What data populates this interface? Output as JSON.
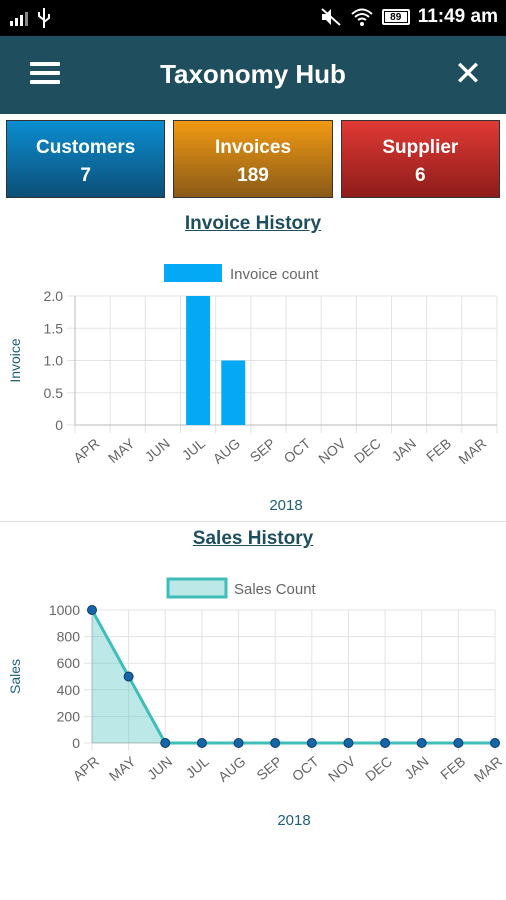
{
  "status": {
    "time": "11:49 am",
    "battery": "89"
  },
  "app_bar": {
    "title": "Taxonomy Hub"
  },
  "cards": [
    {
      "label": "Customers",
      "count": "7"
    },
    {
      "label": "Invoices",
      "count": "189"
    },
    {
      "label": "Supplier",
      "count": "6"
    }
  ],
  "invoice_section": {
    "title": "Invoice History"
  },
  "sales_section": {
    "title": "Sales History"
  },
  "chart_data": [
    {
      "type": "bar",
      "categories": [
        "APR",
        "MAY",
        "JUN",
        "JUL",
        "AUG",
        "SEP",
        "OCT",
        "NOV",
        "DEC",
        "JAN",
        "FEB",
        "MAR"
      ],
      "series": [
        {
          "name": "Invoice count",
          "values": [
            0,
            0,
            0,
            2,
            1,
            0,
            0,
            0,
            0,
            0,
            0,
            0
          ]
        }
      ],
      "xlabel": "2018",
      "ylabel": "Invoice",
      "ylim": [
        0,
        2
      ],
      "yticks": [
        "2.0",
        "1.5",
        "1.0",
        "0.5",
        "0"
      ],
      "color": "#03a9f4",
      "grid": true,
      "legend": "top-center"
    },
    {
      "type": "area",
      "categories": [
        "APR",
        "MAY",
        "JUN",
        "JUL",
        "AUG",
        "SEP",
        "OCT",
        "NOV",
        "DEC",
        "JAN",
        "FEB",
        "MAR"
      ],
      "series": [
        {
          "name": "Sales Count",
          "values": [
            1000,
            500,
            0,
            0,
            0,
            0,
            0,
            0,
            0,
            0,
            0,
            0
          ]
        }
      ],
      "xlabel": "2018",
      "ylabel": "Sales",
      "ylim": [
        0,
        1000
      ],
      "yticks": [
        "1000",
        "800",
        "600",
        "400",
        "200",
        "0"
      ],
      "color": "#3fbdb9",
      "point_color": "#1565a8",
      "grid": true,
      "legend": "top-center"
    }
  ]
}
